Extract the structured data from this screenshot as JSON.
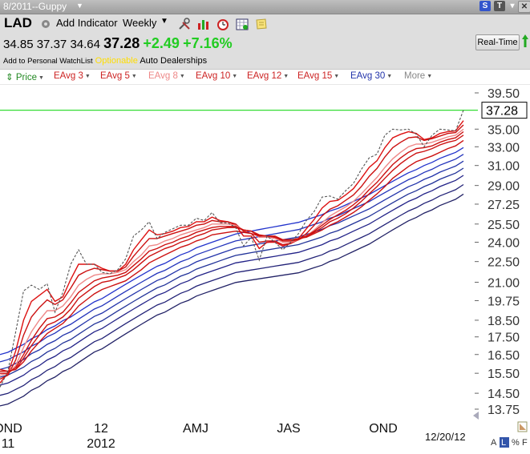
{
  "window": {
    "title": "8/2011--Guppy"
  },
  "header": {
    "symbol": "LAD",
    "add_indicator_label": "Add Indicator",
    "period": "Weekly",
    "open": "34.85",
    "high": "37.37",
    "low": "34.64",
    "last": "37.28",
    "change": "+2.49",
    "change_pct": "+7.16%",
    "watchlist_link": "Add to Personal WatchList",
    "optionable": "Optionable",
    "industry": "Auto Dealerships",
    "realtime_label": "Real-Time"
  },
  "legend": {
    "items": [
      {
        "label": "Price",
        "color": "#228822"
      },
      {
        "label": "EAvg 3",
        "color": "#cc2222"
      },
      {
        "label": "EAvg 5",
        "color": "#cc2222"
      },
      {
        "label": "EAvg 8",
        "color": "#ee8888"
      },
      {
        "label": "EAvg 10",
        "color": "#cc2222"
      },
      {
        "label": "EAvg 12",
        "color": "#cc2222"
      },
      {
        "label": "EAvg 15",
        "color": "#cc2222"
      },
      {
        "label": "EAvg 30",
        "color": "#2233aa"
      },
      {
        "label": "More",
        "color": "#888888"
      }
    ]
  },
  "chart_data": {
    "type": "line",
    "title": "",
    "last_price_label": "37.28",
    "reference_line": 37.28,
    "y_ticks": [
      "39.50",
      "35.00",
      "33.00",
      "31.00",
      "29.00",
      "27.25",
      "25.50",
      "24.00",
      "22.50",
      "21.00",
      "19.75",
      "18.50",
      "17.50",
      "16.50",
      "15.50",
      "14.50",
      "13.75"
    ],
    "x_ticks": [
      {
        "label": "OND",
        "sub": "11"
      },
      {
        "label": "12",
        "sub": "2012"
      },
      {
        "label": "AMJ",
        "sub": ""
      },
      {
        "label": "JAS",
        "sub": ""
      },
      {
        "label": "OND",
        "sub": ""
      }
    ],
    "date_label": "12/20/12",
    "series": [
      {
        "name": "Price",
        "color": "#555555",
        "dashed": true,
        "values": [
          14.8,
          15.6,
          17.8,
          20.4,
          20.8,
          20.5,
          20.9,
          19.0,
          20.3,
          22.3,
          23.4,
          22.3,
          22.3,
          21.7,
          21.6,
          21.9,
          22.7,
          24.5,
          25.0,
          25.7,
          24.3,
          24.8,
          25.1,
          25.4,
          25.4,
          26.0,
          25.8,
          26.5,
          25.6,
          25.6,
          25.2,
          23.7,
          24.4,
          22.6,
          24.5,
          24.0,
          23.4,
          24.0,
          24.7,
          25.8,
          26.6,
          27.9,
          28.0,
          27.7,
          28.5,
          29.2,
          30.6,
          31.8,
          32.2,
          34.3,
          35.0,
          34.9,
          35.0,
          34.4,
          33.0,
          34.3,
          35.0,
          34.9,
          34.8,
          37.3
        ]
      },
      {
        "name": "EAvg 3",
        "color": "#dd1111",
        "values": [
          15.0,
          15.5,
          16.7,
          18.5,
          19.7,
          20.1,
          20.5,
          19.7,
          20.0,
          21.2,
          22.3,
          22.3,
          22.3,
          22.0,
          21.8,
          21.8,
          22.3,
          23.4,
          24.2,
          25.0,
          24.6,
          24.7,
          24.9,
          25.2,
          25.3,
          25.7,
          25.7,
          26.1,
          25.8,
          25.7,
          25.4,
          24.5,
          24.5,
          23.5,
          24.0,
          24.0,
          23.7,
          23.9,
          24.3,
          25.1,
          25.9,
          26.9,
          27.5,
          27.6,
          28.1,
          28.7,
          29.7,
          30.8,
          31.5,
          32.9,
          34.0,
          34.4,
          34.7,
          34.5,
          33.8,
          34.0,
          34.5,
          34.7,
          34.8,
          36.0
        ]
      },
      {
        "name": "EAvg 5",
        "color": "#cc1111",
        "values": [
          15.2,
          15.4,
          16.2,
          17.6,
          18.7,
          19.3,
          19.8,
          19.5,
          19.8,
          20.6,
          21.5,
          21.8,
          22.0,
          21.9,
          21.8,
          21.8,
          22.1,
          22.9,
          23.6,
          24.3,
          24.3,
          24.5,
          24.7,
          24.9,
          25.1,
          25.4,
          25.5,
          25.8,
          25.7,
          25.7,
          25.5,
          24.9,
          24.7,
          24.0,
          24.1,
          24.1,
          23.8,
          23.9,
          24.2,
          24.7,
          25.4,
          26.2,
          26.8,
          27.1,
          27.6,
          28.1,
          28.9,
          29.9,
          30.7,
          31.9,
          32.9,
          33.5,
          34.0,
          34.1,
          33.7,
          33.9,
          34.2,
          34.5,
          34.6,
          35.5
        ]
      },
      {
        "name": "EAvg 8",
        "color": "#ee8888",
        "values": [
          15.4,
          15.5,
          15.9,
          16.9,
          17.8,
          18.5,
          19.1,
          19.1,
          19.4,
          20.0,
          20.8,
          21.2,
          21.5,
          21.6,
          21.6,
          21.7,
          21.9,
          22.5,
          23.0,
          23.7,
          23.8,
          24.1,
          24.3,
          24.6,
          24.8,
          25.0,
          25.2,
          25.5,
          25.5,
          25.5,
          25.4,
          25.0,
          24.9,
          24.4,
          24.4,
          24.3,
          24.0,
          24.0,
          24.2,
          24.5,
          25.0,
          25.6,
          26.2,
          26.6,
          27.0,
          27.5,
          28.2,
          29.0,
          29.8,
          30.8,
          31.7,
          32.4,
          33.0,
          33.3,
          33.3,
          33.5,
          33.8,
          34.1,
          34.3,
          35.0
        ]
      },
      {
        "name": "EAvg 10",
        "color": "#cc1111",
        "values": [
          15.5,
          15.5,
          15.8,
          16.5,
          17.3,
          18.0,
          18.6,
          18.7,
          19.0,
          19.6,
          20.3,
          20.7,
          21.1,
          21.3,
          21.4,
          21.5,
          21.7,
          22.2,
          22.7,
          23.3,
          23.5,
          23.8,
          24.0,
          24.3,
          24.5,
          24.8,
          25.0,
          25.2,
          25.3,
          25.3,
          25.3,
          25.0,
          24.9,
          24.5,
          24.5,
          24.4,
          24.1,
          24.1,
          24.2,
          24.5,
          24.9,
          25.4,
          25.9,
          26.3,
          26.7,
          27.2,
          27.8,
          28.6,
          29.3,
          30.2,
          31.1,
          31.8,
          32.4,
          32.8,
          32.9,
          33.1,
          33.5,
          33.8,
          34.0,
          34.7
        ]
      },
      {
        "name": "EAvg 12",
        "color": "#cc1111",
        "values": [
          15.6,
          15.6,
          15.7,
          16.3,
          17.0,
          17.6,
          18.2,
          18.4,
          18.7,
          19.2,
          19.9,
          20.3,
          20.7,
          21.0,
          21.1,
          21.3,
          21.5,
          21.9,
          22.4,
          22.9,
          23.2,
          23.5,
          23.7,
          24.0,
          24.2,
          24.5,
          24.7,
          25.0,
          25.1,
          25.2,
          25.2,
          25.0,
          24.9,
          24.6,
          24.5,
          24.5,
          24.2,
          24.2,
          24.3,
          24.5,
          24.8,
          25.2,
          25.7,
          26.0,
          26.4,
          26.9,
          27.5,
          28.2,
          28.9,
          29.7,
          30.5,
          31.2,
          31.8,
          32.3,
          32.5,
          32.8,
          33.2,
          33.5,
          33.7,
          34.3
        ]
      },
      {
        "name": "EAvg 15",
        "color": "#cc1111",
        "values": [
          15.7,
          15.6,
          15.7,
          16.1,
          16.7,
          17.2,
          17.7,
          18.0,
          18.3,
          18.8,
          19.4,
          19.8,
          20.2,
          20.5,
          20.7,
          20.9,
          21.1,
          21.5,
          21.9,
          22.4,
          22.7,
          23.0,
          23.3,
          23.6,
          23.8,
          24.1,
          24.3,
          24.6,
          24.7,
          24.8,
          24.9,
          24.8,
          24.7,
          24.5,
          24.5,
          24.4,
          24.2,
          24.2,
          24.3,
          24.4,
          24.7,
          25.0,
          25.4,
          25.7,
          26.1,
          26.5,
          27.0,
          27.6,
          28.2,
          28.9,
          29.7,
          30.3,
          30.9,
          31.4,
          31.7,
          32.0,
          32.4,
          32.8,
          33.1,
          33.7
        ]
      },
      {
        "name": "EAvg 30",
        "color": "#2233aa",
        "values": [
          14.9,
          15.0,
          15.2,
          15.4,
          15.7,
          15.9,
          16.2,
          16.4,
          16.7,
          16.9,
          17.2,
          17.5,
          17.8,
          18.0,
          18.3,
          18.6,
          18.9,
          19.2,
          19.5,
          19.8,
          20.1,
          20.3,
          20.6,
          20.9,
          21.1,
          21.4,
          21.6,
          21.8,
          22.0,
          22.2,
          22.4,
          22.5,
          22.6,
          22.7,
          22.8,
          22.9,
          23.0,
          23.1,
          23.2,
          23.4,
          23.6,
          23.8,
          24.1,
          24.3,
          24.6,
          24.9,
          25.2,
          25.5,
          25.9,
          26.3,
          26.7,
          27.1,
          27.5,
          27.8,
          28.2,
          28.5,
          28.9,
          29.2,
          29.5,
          30.0
        ]
      }
    ],
    "blue_band_offsets": [
      1.6,
      1.2,
      0.8,
      0.4,
      0.0,
      -0.5,
      -1.0
    ],
    "blue_band_colors": [
      "#2233cc",
      "#2233bb",
      "#2233aa",
      "#223399",
      "#222288",
      "#222277",
      "#222266"
    ]
  }
}
